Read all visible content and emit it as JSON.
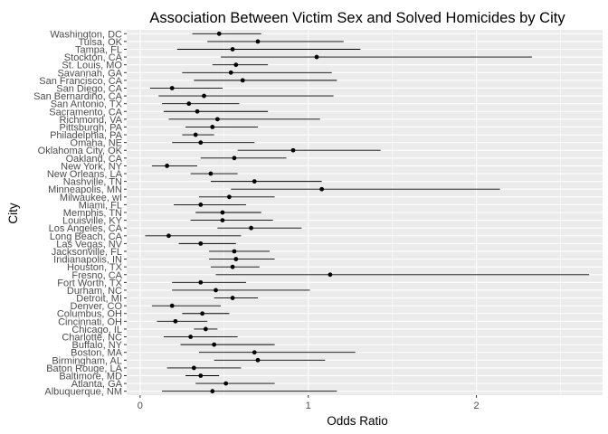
{
  "chart_data": {
    "type": "scatter",
    "title": "Association Between Victim Sex and Solved Homicides by City",
    "xlabel": "Odds Ratio",
    "ylabel": "City",
    "xlim": [
      -0.08,
      2.75
    ],
    "x_ticks": [
      "0",
      "1",
      "2"
    ],
    "x_tick_values": [
      0,
      1,
      2
    ],
    "grid": true,
    "panel_background": "#ebebeb",
    "grid_color": "#ffffff",
    "point_color": "#000000",
    "cities": [
      {
        "name": "Washington, DC",
        "or": 0.47,
        "lo": 0.31,
        "hi": 0.72
      },
      {
        "name": "Tulsa, OK",
        "or": 0.7,
        "lo": 0.4,
        "hi": 1.21
      },
      {
        "name": "Tampa, FL",
        "or": 0.55,
        "lo": 0.22,
        "hi": 1.31
      },
      {
        "name": "Stockton, CA",
        "or": 1.05,
        "lo": 0.48,
        "hi": 2.33
      },
      {
        "name": "St. Louis, MO",
        "or": 0.57,
        "lo": 0.43,
        "hi": 0.76
      },
      {
        "name": "Savannah, GA",
        "or": 0.54,
        "lo": 0.25,
        "hi": 1.14
      },
      {
        "name": "San Francisco, CA",
        "or": 0.61,
        "lo": 0.32,
        "hi": 1.17
      },
      {
        "name": "San Diego, CA",
        "or": 0.19,
        "lo": 0.06,
        "hi": 0.49
      },
      {
        "name": "San Bernardino, CA",
        "or": 0.38,
        "lo": 0.11,
        "hi": 1.15
      },
      {
        "name": "San Antonio, TX",
        "or": 0.29,
        "lo": 0.13,
        "hi": 0.59
      },
      {
        "name": "Sacramento, CA",
        "or": 0.34,
        "lo": 0.14,
        "hi": 0.76
      },
      {
        "name": "Richmond, VA",
        "or": 0.46,
        "lo": 0.17,
        "hi": 1.07
      },
      {
        "name": "Pittsburgh, PA",
        "or": 0.43,
        "lo": 0.27,
        "hi": 0.7
      },
      {
        "name": "Philadelphia, PA",
        "or": 0.33,
        "lo": 0.25,
        "hi": 0.44
      },
      {
        "name": "Omaha, NE",
        "or": 0.36,
        "lo": 0.19,
        "hi": 0.68
      },
      {
        "name": "Oklahoma City, OK",
        "or": 0.91,
        "lo": 0.58,
        "hi": 1.43
      },
      {
        "name": "Oakland, CA",
        "or": 0.56,
        "lo": 0.36,
        "hi": 0.87
      },
      {
        "name": "New York, NY",
        "or": 0.16,
        "lo": 0.07,
        "hi": 0.34
      },
      {
        "name": "New Orleans, LA",
        "or": 0.42,
        "lo": 0.3,
        "hi": 0.58
      },
      {
        "name": "Nashville, TN",
        "or": 0.68,
        "lo": 0.42,
        "hi": 1.08
      },
      {
        "name": "Minneapolis, MN",
        "or": 1.08,
        "lo": 0.54,
        "hi": 2.14
      },
      {
        "name": "Milwaukee, wI",
        "or": 0.53,
        "lo": 0.35,
        "hi": 0.8
      },
      {
        "name": "Miami, FL",
        "or": 0.36,
        "lo": 0.2,
        "hi": 0.63
      },
      {
        "name": "Memphis, TN",
        "or": 0.49,
        "lo": 0.33,
        "hi": 0.72
      },
      {
        "name": "Louisville, KY",
        "or": 0.49,
        "lo": 0.3,
        "hi": 0.79
      },
      {
        "name": "Los Angeles, CA",
        "or": 0.66,
        "lo": 0.46,
        "hi": 0.96
      },
      {
        "name": "Long Beach, CA",
        "or": 0.17,
        "lo": 0.03,
        "hi": 0.6
      },
      {
        "name": "Las Vegas, NV",
        "or": 0.36,
        "lo": 0.23,
        "hi": 0.57
      },
      {
        "name": "Jacksonville, FL",
        "or": 0.56,
        "lo": 0.41,
        "hi": 0.77
      },
      {
        "name": "Indianapolis, IN",
        "or": 0.57,
        "lo": 0.41,
        "hi": 0.8
      },
      {
        "name": "Houston, TX",
        "or": 0.55,
        "lo": 0.42,
        "hi": 0.71
      },
      {
        "name": "Fresno, CA",
        "or": 1.13,
        "lo": 0.45,
        "hi": 2.67
      },
      {
        "name": "Fort Worth, TX",
        "or": 0.36,
        "lo": 0.19,
        "hi": 0.63
      },
      {
        "name": "Durham, NC",
        "or": 0.45,
        "lo": 0.19,
        "hi": 1.01
      },
      {
        "name": "Detroit, MI",
        "or": 0.55,
        "lo": 0.44,
        "hi": 0.7
      },
      {
        "name": "Denver, CO",
        "or": 0.19,
        "lo": 0.07,
        "hi": 0.48
      },
      {
        "name": "Columbus, OH",
        "or": 0.37,
        "lo": 0.25,
        "hi": 0.53
      },
      {
        "name": "Cincinnati, OH",
        "or": 0.21,
        "lo": 0.1,
        "hi": 0.4
      },
      {
        "name": "Chicago, IL",
        "or": 0.39,
        "lo": 0.32,
        "hi": 0.46
      },
      {
        "name": "Charlotte, NC",
        "or": 0.3,
        "lo": 0.14,
        "hi": 0.58
      },
      {
        "name": "Buffalo, NY",
        "or": 0.44,
        "lo": 0.24,
        "hi": 0.8
      },
      {
        "name": "Boston, MA",
        "or": 0.68,
        "lo": 0.35,
        "hi": 1.28
      },
      {
        "name": "Birmingham, AL",
        "or": 0.7,
        "lo": 0.44,
        "hi": 1.1
      },
      {
        "name": "Baton Rouge, LA",
        "or": 0.32,
        "lo": 0.16,
        "hi": 0.6
      },
      {
        "name": "Baltimore, MD",
        "or": 0.36,
        "lo": 0.27,
        "hi": 0.47
      },
      {
        "name": "Atlanta, GA",
        "or": 0.51,
        "lo": 0.33,
        "hi": 0.8
      },
      {
        "name": "Albuquerque, NM",
        "or": 0.43,
        "lo": 0.13,
        "hi": 1.17
      }
    ]
  }
}
